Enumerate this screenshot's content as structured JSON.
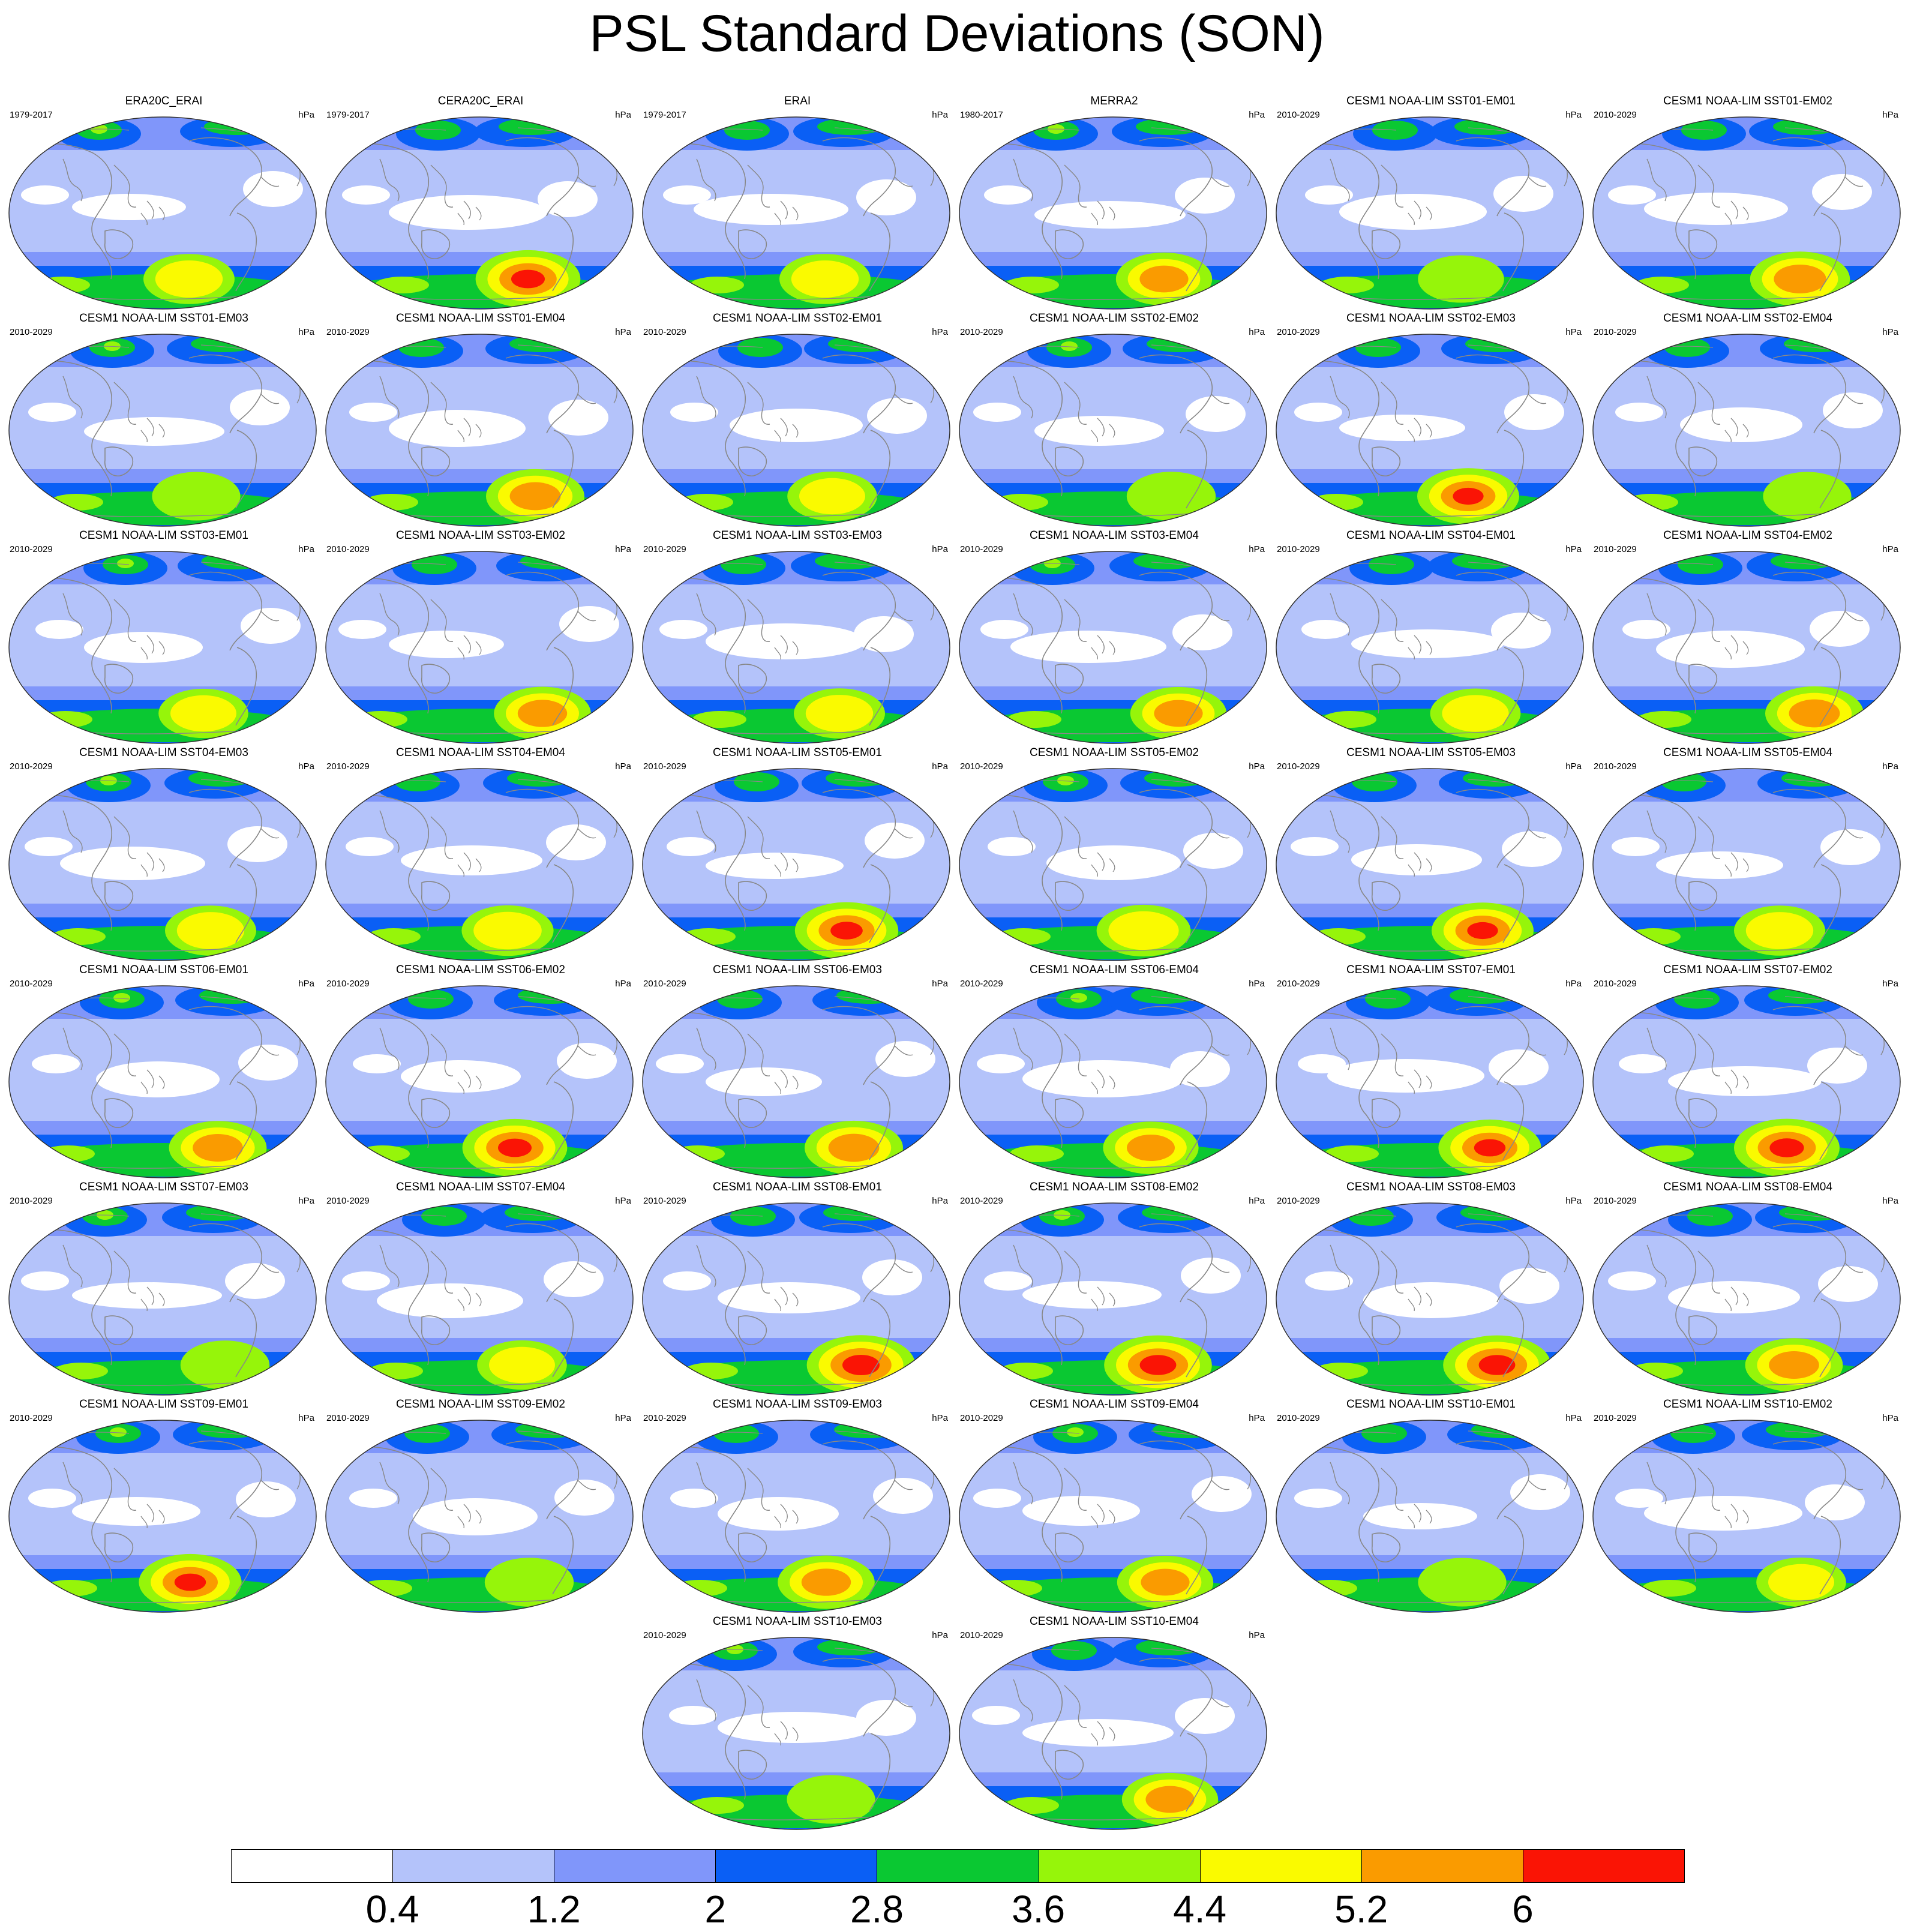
{
  "title": "PSL Standard Deviations (SON)",
  "units": "hPa",
  "colorbar": {
    "labels": [
      "0.4",
      "1.2",
      "2",
      "2.8",
      "3.6",
      "4.4",
      "5.2",
      "6"
    ],
    "colors": [
      "#ffffff",
      "#b4c3fa",
      "#8096fa",
      "#0a5ff5",
      "#0ac832",
      "#96f50a",
      "#fafa00",
      "#fa9b00",
      "#fa1405"
    ]
  },
  "panels": [
    {
      "name": "ERA20C_ERAI",
      "period": "1979-2017",
      "units": "hPa",
      "max": 4.6
    },
    {
      "name": "CERA20C_ERAI",
      "period": "1979-2017",
      "units": "hPa",
      "max": 6.5
    },
    {
      "name": "ERAI",
      "period": "1979-2017",
      "units": "hPa",
      "max": 4.6
    },
    {
      "name": "MERRA2",
      "period": "1980-2017",
      "units": "hPa",
      "max": 5.3
    },
    {
      "name": "CESM1 NOAA-LIM SST01-EM01",
      "period": "2010-2029",
      "units": "hPa",
      "max": 3.9
    },
    {
      "name": "CESM1 NOAA-LIM SST01-EM02",
      "period": "2010-2029",
      "units": "hPa",
      "max": 5.8
    },
    {
      "name": "CESM1 NOAA-LIM SST01-EM03",
      "period": "2010-2029",
      "units": "hPa",
      "max": 4.2
    },
    {
      "name": "CESM1 NOAA-LIM SST01-EM04",
      "period": "2010-2029",
      "units": "hPa",
      "max": 5.6
    },
    {
      "name": "CESM1 NOAA-LIM SST02-EM01",
      "period": "2010-2029",
      "units": "hPa",
      "max": 4.4
    },
    {
      "name": "CESM1 NOAA-LIM SST02-EM02",
      "period": "2010-2029",
      "units": "hPa",
      "max": 4.3
    },
    {
      "name": "CESM1 NOAA-LIM SST02-EM03",
      "period": "2010-2029",
      "units": "hPa",
      "max": 6.1
    },
    {
      "name": "CESM1 NOAA-LIM SST02-EM04",
      "period": "2010-2029",
      "units": "hPa",
      "max": 4.2
    },
    {
      "name": "CESM1 NOAA-LIM SST03-EM01",
      "period": "2010-2029",
      "units": "hPa",
      "max": 4.4
    },
    {
      "name": "CESM1 NOAA-LIM SST03-EM02",
      "period": "2010-2029",
      "units": "hPa",
      "max": 5.4
    },
    {
      "name": "CESM1 NOAA-LIM SST03-EM03",
      "period": "2010-2029",
      "units": "hPa",
      "max": 4.6
    },
    {
      "name": "CESM1 NOAA-LIM SST03-EM04",
      "period": "2010-2029",
      "units": "hPa",
      "max": 5.3
    },
    {
      "name": "CESM1 NOAA-LIM SST04-EM01",
      "period": "2010-2029",
      "units": "hPa",
      "max": 4.5
    },
    {
      "name": "CESM1 NOAA-LIM SST04-EM02",
      "period": "2010-2029",
      "units": "hPa",
      "max": 5.6
    },
    {
      "name": "CESM1 NOAA-LIM SST04-EM03",
      "period": "2010-2029",
      "units": "hPa",
      "max": 4.6
    },
    {
      "name": "CESM1 NOAA-LIM SST04-EM04",
      "period": "2010-2029",
      "units": "hPa",
      "max": 4.7
    },
    {
      "name": "CESM1 NOAA-LIM SST05-EM01",
      "period": "2010-2029",
      "units": "hPa",
      "max": 6.3
    },
    {
      "name": "CESM1 NOAA-LIM SST05-EM02",
      "period": "2010-2029",
      "units": "hPa",
      "max": 5.0
    },
    {
      "name": "CESM1 NOAA-LIM SST05-EM03",
      "period": "2010-2029",
      "units": "hPa",
      "max": 6.1
    },
    {
      "name": "CESM1 NOAA-LIM SST05-EM04",
      "period": "2010-2029",
      "units": "hPa",
      "max": 4.6
    },
    {
      "name": "CESM1 NOAA-LIM SST06-EM01",
      "period": "2010-2029",
      "units": "hPa",
      "max": 5.5
    },
    {
      "name": "CESM1 NOAA-LIM SST06-EM02",
      "period": "2010-2029",
      "units": "hPa",
      "max": 6.5
    },
    {
      "name": "CESM1 NOAA-LIM SST06-EM03",
      "period": "2010-2029",
      "units": "hPa",
      "max": 5.6
    },
    {
      "name": "CESM1 NOAA-LIM SST06-EM04",
      "period": "2010-2029",
      "units": "hPa",
      "max": 5.2
    },
    {
      "name": "CESM1 NOAA-LIM SST07-EM01",
      "period": "2010-2029",
      "units": "hPa",
      "max": 6.2
    },
    {
      "name": "CESM1 NOAA-LIM SST07-EM02",
      "period": "2010-2029",
      "units": "hPa",
      "max": 6.6
    },
    {
      "name": "CESM1 NOAA-LIM SST07-EM03",
      "period": "2010-2029",
      "units": "hPa",
      "max": 4.3
    },
    {
      "name": "CESM1 NOAA-LIM SST07-EM04",
      "period": "2010-2029",
      "units": "hPa",
      "max": 4.4
    },
    {
      "name": "CESM1 NOAA-LIM SST08-EM01",
      "period": "2010-2029",
      "units": "hPa",
      "max": 7.0
    },
    {
      "name": "CESM1 NOAA-LIM SST08-EM02",
      "period": "2010-2029",
      "units": "hPa",
      "max": 6.9
    },
    {
      "name": "CESM1 NOAA-LIM SST08-EM03",
      "period": "2010-2029",
      "units": "hPa",
      "max": 6.9
    },
    {
      "name": "CESM1 NOAA-LIM SST08-EM04",
      "period": "2010-2029",
      "units": "hPa",
      "max": 5.5
    },
    {
      "name": "CESM1 NOAA-LIM SST09-EM01",
      "period": "2010-2029",
      "units": "hPa",
      "max": 6.2
    },
    {
      "name": "CESM1 NOAA-LIM SST09-EM02",
      "period": "2010-2029",
      "units": "hPa",
      "max": 4.3
    },
    {
      "name": "CESM1 NOAA-LIM SST09-EM03",
      "period": "2010-2029",
      "units": "hPa",
      "max": 5.4
    },
    {
      "name": "CESM1 NOAA-LIM SST09-EM04",
      "period": "2010-2029",
      "units": "hPa",
      "max": 5.3
    },
    {
      "name": "CESM1 NOAA-LIM SST10-EM01",
      "period": "2010-2029",
      "units": "hPa",
      "max": 4.2
    },
    {
      "name": "CESM1 NOAA-LIM SST10-EM02",
      "period": "2010-2029",
      "units": "hPa",
      "max": 4.4
    },
    {
      "name": "CESM1 NOAA-LIM SST10-EM03",
      "period": "2010-2029",
      "units": "hPa",
      "max": 4.2
    },
    {
      "name": "CESM1 NOAA-LIM SST10-EM04",
      "period": "2010-2029",
      "units": "hPa",
      "max": 5.3
    }
  ]
}
